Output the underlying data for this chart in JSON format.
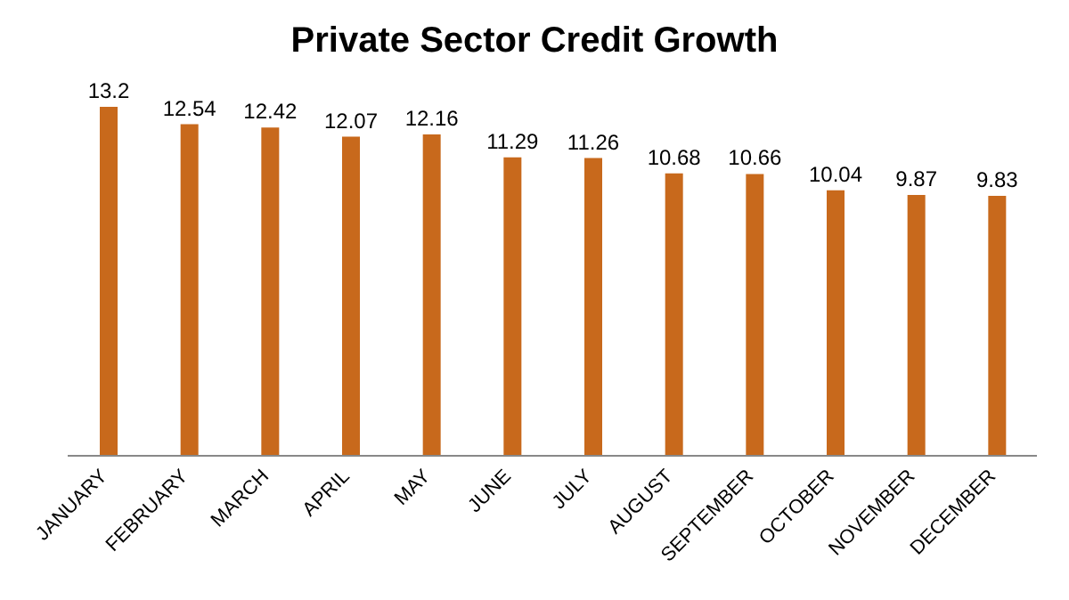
{
  "chart_data": {
    "type": "bar",
    "title": "Private Sector Credit Growth",
    "categories": [
      "JANUARY",
      "FEBRUARY",
      "MARCH",
      "APRIL",
      "MAY",
      "JUNE",
      "JULY",
      "AUGUST",
      "SEPTEMBER",
      "OCTOBER",
      "NOVEMBER",
      "DECEMBER"
    ],
    "values": [
      13.2,
      12.54,
      12.42,
      12.07,
      12.16,
      11.29,
      11.26,
      10.68,
      10.66,
      10.04,
      9.87,
      9.83
    ],
    "color": "#c8691c",
    "data_labels": true,
    "grid": false,
    "legend": false
  }
}
